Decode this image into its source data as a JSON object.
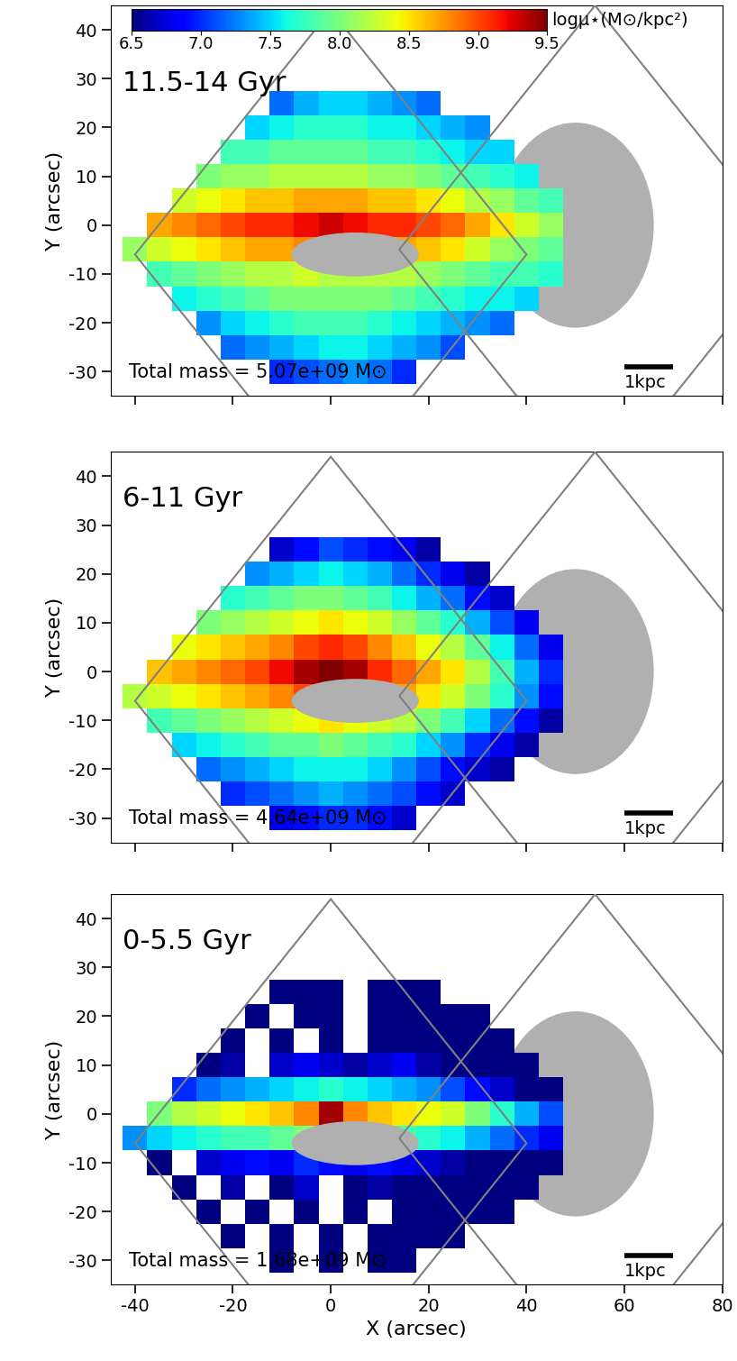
{
  "chart_data": [
    {
      "type": "heatmap",
      "title": "11.5-14 Gyr",
      "annotation": "Total mass = 5.07e+09 M⊙",
      "y_label": "Y (arcsec)",
      "tick_labels": "y",
      "scale_bar": {
        "label": "1kpc",
        "length": 10
      },
      "xlim": [
        -45,
        80
      ],
      "ylim": [
        -35,
        45
      ],
      "xticks": [
        -40,
        -20,
        0,
        20,
        40,
        60,
        80
      ],
      "yticks": [
        -30,
        -20,
        -10,
        0,
        10,
        20,
        30,
        40
      ],
      "colorbar": {
        "label": "logμ⋆(M⊙/kpc²)",
        "range": [
          6.5,
          9.5
        ],
        "ticks": [
          {
            "value": 6.5,
            "label": "6.5"
          },
          {
            "value": 7.0,
            "label": "7.0"
          },
          {
            "value": 7.5,
            "label": "7.5"
          },
          {
            "value": 8.0,
            "label": "8.0"
          },
          {
            "value": 8.5,
            "label": "8.5"
          },
          {
            "value": 9.0,
            "label": "9.0"
          },
          {
            "value": 9.5,
            "label": "9.5"
          }
        ]
      },
      "x_edges": [
        -42.5,
        -37.5,
        -32.5,
        -27.5,
        -22.5,
        -17.5,
        -12.5,
        -7.5,
        -2.5,
        2.5,
        7.5,
        12.5,
        17.5,
        22.5,
        27.5,
        32.5,
        37.5,
        42.5,
        47.5,
        52.5
      ],
      "y_edges": [
        -32.5,
        -27.5,
        -22.5,
        -17.5,
        -12.5,
        -7.5,
        -2.5,
        2.5,
        7.5,
        12.5,
        17.5,
        22.5,
        27.5
      ],
      "cells": [
        [
          null,
          null,
          null,
          null,
          null,
          null,
          7.0,
          7.1,
          7.2,
          7.3,
          7.2,
          7.0,
          null,
          null,
          null,
          null,
          null,
          null,
          null
        ],
        [
          null,
          null,
          null,
          null,
          7.2,
          7.3,
          7.4,
          7.5,
          7.6,
          7.6,
          7.5,
          7.4,
          7.3,
          7.1,
          null,
          null,
          null,
          null,
          null
        ],
        [
          null,
          null,
          null,
          7.3,
          7.5,
          7.6,
          7.7,
          7.8,
          7.8,
          7.8,
          7.7,
          7.6,
          7.5,
          7.4,
          7.3,
          7.2,
          null,
          null,
          null
        ],
        [
          null,
          null,
          7.6,
          7.7,
          7.8,
          7.9,
          8.0,
          8.0,
          8.0,
          8.0,
          8.0,
          7.9,
          7.8,
          7.7,
          7.6,
          7.6,
          7.5,
          null,
          null
        ],
        [
          null,
          7.8,
          7.9,
          8.0,
          8.1,
          8.2,
          8.2,
          8.3,
          8.2,
          8.2,
          8.2,
          8.2,
          8.1,
          8.0,
          7.9,
          7.8,
          7.8,
          7.7,
          null
        ],
        [
          8.1,
          8.3,
          8.4,
          8.5,
          8.6,
          8.7,
          8.7,
          8.8,
          8.8,
          8.7,
          8.7,
          8.7,
          8.6,
          8.5,
          8.3,
          8.1,
          8.0,
          7.9,
          null
        ],
        [
          null,
          8.7,
          8.8,
          8.9,
          9.0,
          9.1,
          9.1,
          9.2,
          9.3,
          9.2,
          9.1,
          9.1,
          9.0,
          8.9,
          8.7,
          8.5,
          8.3,
          8.1,
          null
        ],
        [
          null,
          null,
          8.3,
          8.4,
          8.5,
          8.6,
          8.6,
          8.7,
          8.7,
          8.7,
          8.6,
          8.6,
          8.5,
          8.4,
          8.2,
          8.1,
          7.9,
          7.8,
          null
        ],
        [
          null,
          null,
          null,
          8.0,
          8.1,
          8.1,
          8.2,
          8.2,
          8.2,
          8.2,
          8.1,
          8.1,
          8.0,
          7.9,
          7.8,
          7.7,
          7.6,
          null,
          null
        ],
        [
          null,
          null,
          null,
          null,
          7.8,
          7.8,
          7.9,
          7.9,
          7.9,
          7.9,
          7.8,
          7.8,
          7.7,
          7.6,
          7.5,
          7.5,
          null,
          null,
          null
        ],
        [
          null,
          null,
          null,
          null,
          null,
          7.5,
          7.6,
          7.7,
          7.7,
          7.7,
          7.6,
          7.6,
          7.5,
          7.4,
          7.3,
          null,
          null,
          null,
          null
        ],
        [
          null,
          null,
          null,
          null,
          null,
          null,
          7.2,
          7.4,
          7.5,
          7.5,
          7.4,
          7.3,
          7.2,
          null,
          null,
          null,
          null,
          null,
          null
        ]
      ]
    },
    {
      "type": "heatmap",
      "title": "6-11 Gyr",
      "annotation": "Total mass = 4.64e+09 M⊙",
      "y_label": "Y (arcsec)",
      "tick_labels": "y",
      "scale_bar": {
        "label": "1kpc",
        "length": 10
      },
      "xlim": [
        -45,
        80
      ],
      "ylim": [
        -35,
        45
      ],
      "xticks": [
        -40,
        -20,
        0,
        20,
        40,
        60,
        80
      ],
      "yticks": [
        -30,
        -20,
        -10,
        0,
        10,
        20,
        30,
        40
      ],
      "x_edges": [
        -42.5,
        -37.5,
        -32.5,
        -27.5,
        -22.5,
        -17.5,
        -12.5,
        -7.5,
        -2.5,
        2.5,
        7.5,
        12.5,
        17.5,
        22.5,
        27.5,
        32.5,
        37.5,
        42.5,
        47.5,
        52.5
      ],
      "y_edges": [
        -32.5,
        -27.5,
        -22.5,
        -17.5,
        -12.5,
        -7.5,
        -2.5,
        2.5,
        7.5,
        12.5,
        17.5,
        22.5,
        27.5
      ],
      "cells": [
        [
          null,
          null,
          null,
          null,
          null,
          null,
          6.8,
          6.9,
          7.0,
          7.0,
          6.9,
          6.7,
          null,
          null,
          null,
          null,
          null,
          null,
          null
        ],
        [
          null,
          null,
          null,
          null,
          7.0,
          7.1,
          7.2,
          7.3,
          7.4,
          7.3,
          7.2,
          7.1,
          6.9,
          6.7,
          null,
          null,
          null,
          null,
          null
        ],
        [
          null,
          null,
          null,
          7.2,
          7.3,
          7.4,
          7.5,
          7.6,
          7.6,
          7.6,
          7.5,
          7.3,
          7.1,
          6.9,
          6.7,
          6.6,
          null,
          null,
          null
        ],
        [
          null,
          null,
          7.5,
          7.6,
          7.7,
          7.8,
          7.9,
          7.9,
          8.0,
          7.9,
          7.8,
          7.7,
          7.5,
          7.3,
          7.0,
          6.8,
          6.6,
          null,
          null
        ],
        [
          null,
          7.8,
          7.9,
          8.0,
          8.1,
          8.2,
          8.3,
          8.4,
          8.5,
          8.4,
          8.3,
          8.2,
          8.0,
          7.8,
          7.5,
          7.2,
          6.9,
          6.6,
          null
        ],
        [
          8.2,
          8.3,
          8.4,
          8.5,
          8.6,
          8.7,
          8.8,
          9.0,
          9.1,
          9.0,
          8.8,
          8.7,
          8.5,
          8.3,
          8.0,
          7.7,
          7.3,
          6.9,
          null
        ],
        [
          null,
          8.6,
          8.7,
          8.8,
          8.9,
          9.0,
          9.2,
          9.4,
          9.5,
          9.4,
          9.1,
          8.9,
          8.7,
          8.5,
          8.2,
          7.8,
          7.4,
          7.0,
          null
        ],
        [
          null,
          null,
          8.4,
          8.5,
          8.6,
          8.7,
          8.8,
          9.0,
          9.1,
          9.0,
          8.8,
          8.6,
          8.4,
          8.2,
          7.9,
          7.6,
          7.2,
          6.8,
          null
        ],
        [
          null,
          null,
          null,
          8.0,
          8.1,
          8.2,
          8.3,
          8.4,
          8.5,
          8.4,
          8.3,
          8.1,
          7.9,
          7.7,
          7.4,
          7.1,
          6.8,
          null,
          null
        ],
        [
          null,
          null,
          null,
          null,
          7.7,
          7.8,
          7.9,
          8.0,
          8.0,
          7.9,
          7.8,
          7.6,
          7.4,
          7.2,
          6.9,
          6.7,
          null,
          null,
          null
        ],
        [
          null,
          null,
          null,
          null,
          null,
          7.3,
          7.4,
          7.5,
          7.6,
          7.5,
          7.4,
          7.2,
          7.0,
          6.8,
          6.6,
          null,
          null,
          null,
          null
        ],
        [
          null,
          null,
          null,
          null,
          null,
          null,
          6.7,
          6.9,
          7.1,
          7.0,
          6.9,
          6.8,
          6.6,
          null,
          null,
          null,
          null,
          null,
          null
        ]
      ]
    },
    {
      "type": "heatmap",
      "title": "0-5.5 Gyr",
      "annotation": "Total mass = 1.68e+09 M⊙",
      "x_label": "X (arcsec)",
      "y_label": "Y (arcsec)",
      "scale_bar": {
        "label": "1kpc",
        "length": 10
      },
      "xlim": [
        -45,
        80
      ],
      "ylim": [
        -35,
        45
      ],
      "xticks": [
        -40,
        -20,
        0,
        20,
        40,
        60,
        80
      ],
      "yticks": [
        -30,
        -20,
        -10,
        0,
        10,
        20,
        30,
        40
      ],
      "x_edges": [
        -42.5,
        -37.5,
        -32.5,
        -27.5,
        -22.5,
        -17.5,
        -12.5,
        -7.5,
        -2.5,
        2.5,
        7.5,
        12.5,
        17.5,
        22.5,
        27.5,
        32.5,
        37.5,
        42.5,
        47.5,
        52.5
      ],
      "y_edges": [
        -32.5,
        -27.5,
        -22.5,
        -17.5,
        -12.5,
        -7.5,
        -2.5,
        2.5,
        7.5,
        12.5,
        17.5,
        22.5,
        27.5
      ],
      "cells": [
        [
          null,
          null,
          null,
          null,
          null,
          null,
          6.5,
          null,
          6.5,
          null,
          6.5,
          6.5,
          null,
          null,
          null,
          null,
          null,
          null,
          null
        ],
        [
          null,
          null,
          null,
          null,
          6.5,
          null,
          6.5,
          null,
          6.5,
          null,
          6.5,
          6.5,
          6.5,
          6.5,
          null,
          null,
          null,
          null,
          null
        ],
        [
          null,
          null,
          null,
          6.5,
          null,
          6.5,
          null,
          6.5,
          null,
          6.5,
          null,
          6.5,
          6.5,
          6.5,
          6.5,
          6.5,
          null,
          null,
          null
        ],
        [
          null,
          null,
          6.5,
          null,
          6.6,
          null,
          6.5,
          6.7,
          null,
          6.5,
          6.6,
          6.5,
          6.5,
          6.5,
          6.5,
          6.5,
          6.5,
          null,
          null
        ],
        [
          null,
          6.5,
          null,
          6.7,
          6.8,
          6.9,
          6.8,
          7.0,
          6.9,
          6.8,
          6.9,
          6.8,
          6.7,
          6.6,
          6.5,
          6.5,
          6.5,
          6.5,
          null
        ],
        [
          7.3,
          7.5,
          7.6,
          7.7,
          7.8,
          7.8,
          7.9,
          8.0,
          8.1,
          7.9,
          7.8,
          7.8,
          7.7,
          7.6,
          7.4,
          7.2,
          7.0,
          6.8,
          null
        ],
        [
          null,
          8.0,
          8.2,
          8.3,
          8.4,
          8.5,
          8.6,
          8.8,
          9.4,
          8.8,
          8.6,
          8.5,
          8.4,
          8.3,
          8.0,
          7.7,
          7.4,
          7.1,
          null
        ],
        [
          null,
          null,
          7.0,
          7.2,
          7.3,
          7.4,
          7.5,
          7.6,
          7.7,
          7.6,
          7.5,
          7.4,
          7.3,
          7.1,
          6.9,
          6.7,
          6.5,
          6.5,
          null
        ],
        [
          null,
          null,
          null,
          6.5,
          6.6,
          null,
          6.7,
          6.8,
          6.7,
          6.6,
          6.7,
          6.8,
          6.6,
          6.5,
          6.5,
          6.5,
          6.5,
          null,
          null
        ],
        [
          null,
          null,
          null,
          null,
          6.5,
          null,
          6.5,
          null,
          6.5,
          null,
          6.5,
          6.5,
          6.5,
          6.5,
          6.5,
          6.5,
          null,
          null,
          null
        ],
        [
          null,
          null,
          null,
          null,
          null,
          6.5,
          null,
          6.5,
          6.5,
          null,
          6.5,
          6.5,
          6.5,
          6.5,
          6.5,
          null,
          null,
          null,
          null
        ],
        [
          null,
          null,
          null,
          null,
          null,
          null,
          6.5,
          6.5,
          6.5,
          null,
          6.5,
          6.5,
          6.5,
          null,
          null,
          null,
          null,
          null,
          null
        ]
      ]
    }
  ]
}
